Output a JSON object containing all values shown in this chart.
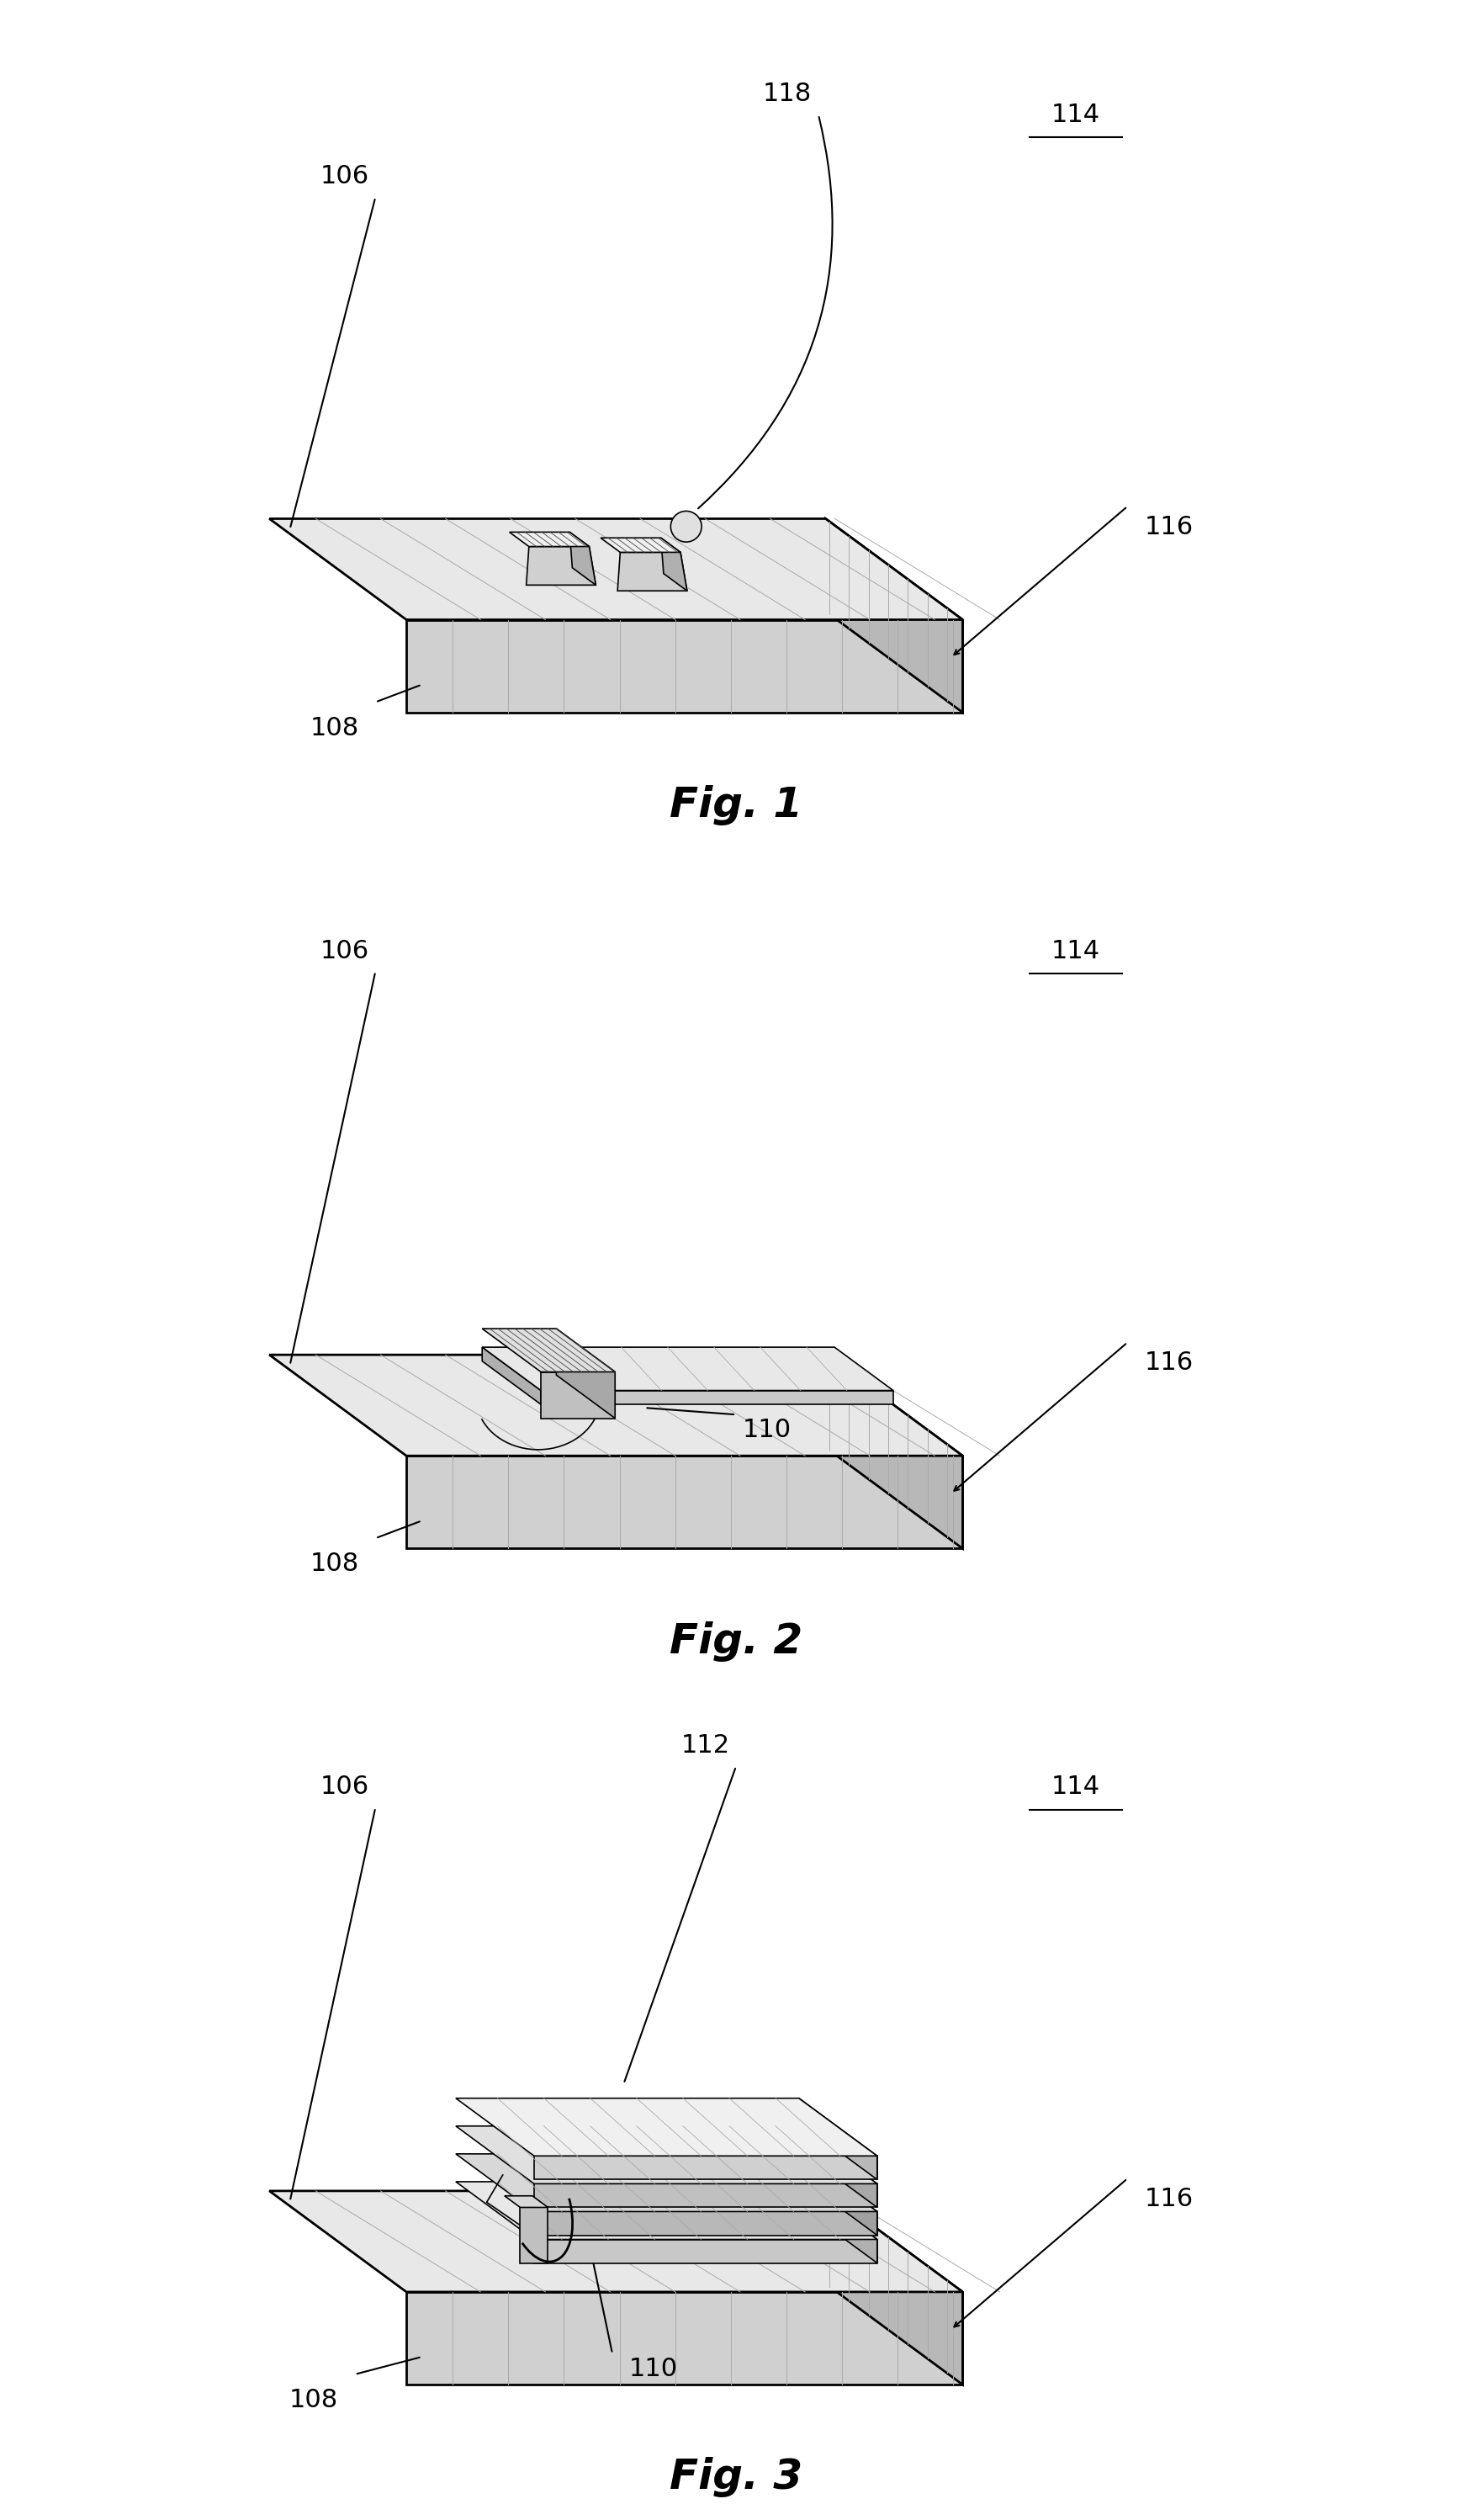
{
  "background_color": "#ffffff",
  "line_color": "#000000",
  "fill_light": "#f0f0f0",
  "fill_medium": "#d8d8d8",
  "fill_dark": "#b0b0b0",
  "fill_side": "#c8c8c8",
  "hatch_color": "#555555",
  "fig_labels": [
    "Fig. 1",
    "Fig. 2",
    "Fig. 3"
  ],
  "ref_numbers": {
    "106": [
      106,
      "106"
    ],
    "108": [
      108,
      "108"
    ],
    "110": [
      110,
      "110"
    ],
    "112": [
      112,
      "112"
    ],
    "114": [
      114,
      "114"
    ],
    "116": [
      116,
      "116"
    ],
    "118": [
      118,
      "118"
    ]
  },
  "label_fontsize": 22,
  "fig_label_fontsize": 36
}
